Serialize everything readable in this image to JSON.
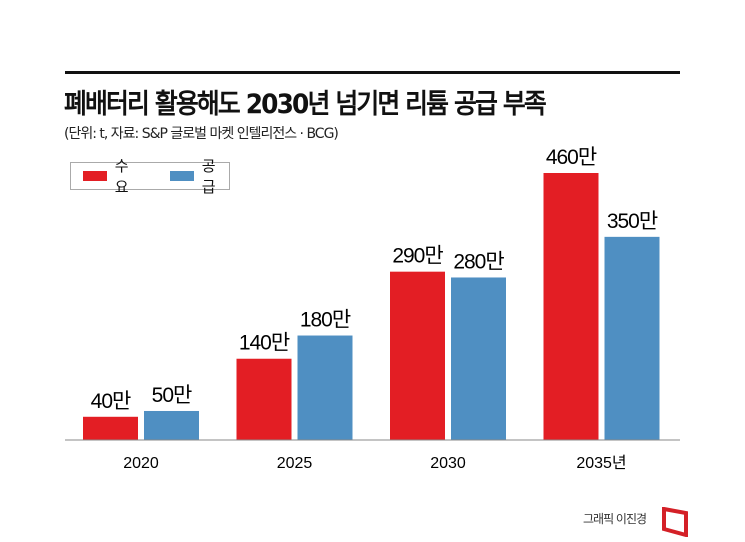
{
  "title": "폐배터리 활용해도 2030년 넘기면 리튬 공급 부족",
  "subtitle": "(단위: t, 자료: S&P 글로벌 마켓 인텔리전스 · BCG)",
  "credit": "그래픽 이진경",
  "colors": {
    "demand": "#e31e24",
    "supply": "#4f8fc2"
  },
  "chart_data": {
    "type": "bar",
    "categories": [
      "2020",
      "2025",
      "2030",
      "2035년"
    ],
    "series": [
      {
        "name": "수요",
        "values": [
          400000,
          1400000,
          2900000,
          4600000
        ],
        "labels": [
          "40만",
          "140만",
          "290만",
          "460만"
        ]
      },
      {
        "name": "공급",
        "values": [
          500000,
          1800000,
          2800000,
          3500000
        ],
        "labels": [
          "50만",
          "180만",
          "280만",
          "350만"
        ]
      }
    ],
    "legend": "top-left",
    "grid": false
  }
}
